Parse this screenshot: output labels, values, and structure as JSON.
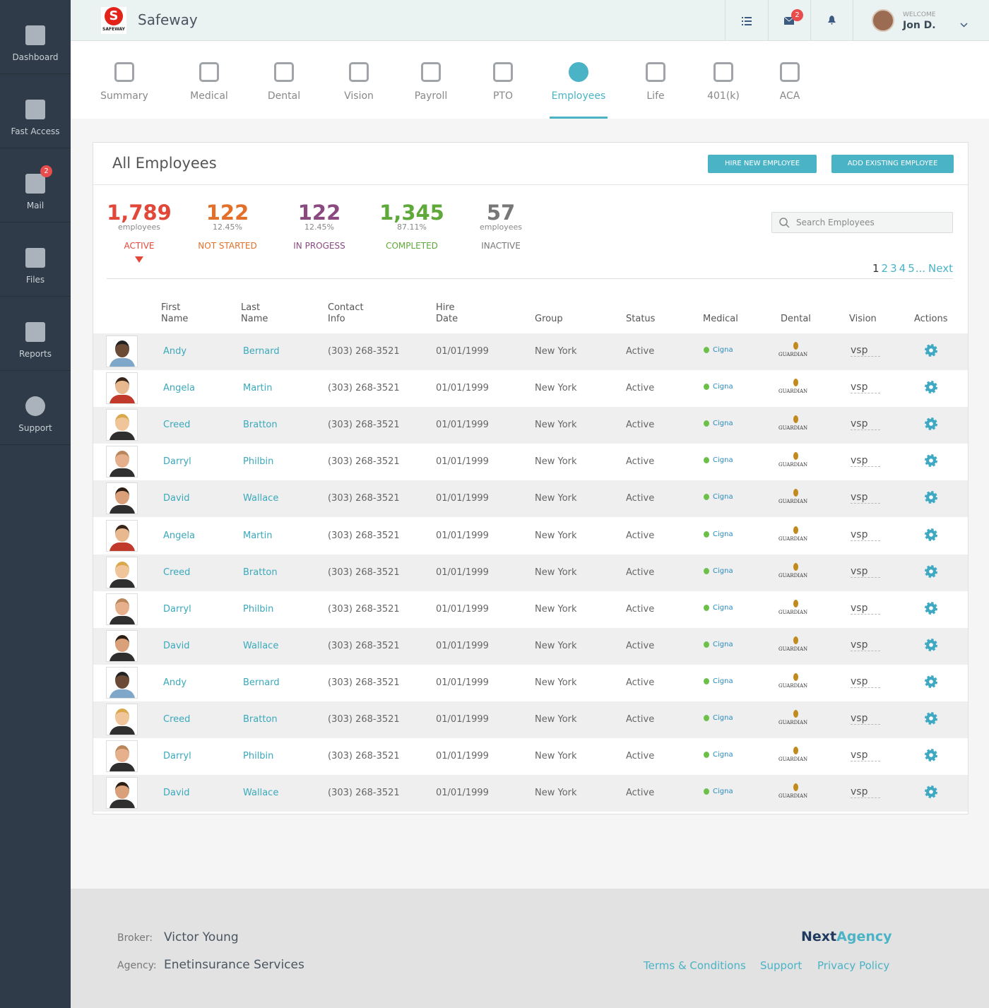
{
  "sidebar": [
    {
      "label": "Dashboard"
    },
    {
      "label": "Fast Access"
    },
    {
      "label": "Mail",
      "badge": 2
    },
    {
      "label": "Files"
    },
    {
      "label": "Reports"
    },
    {
      "label": "Support"
    }
  ],
  "header": {
    "logo_text": "SAFEWAY",
    "brand": "Safeway",
    "mail_badge": 2,
    "welcome": "WELCOME",
    "user": "Jon D."
  },
  "tabs": [
    "Summary",
    "Medical",
    "Dental",
    "Vision",
    "Payroll",
    "PTO",
    "Employees",
    "Life",
    "401(k)",
    "ACA"
  ],
  "active_tab": 6,
  "panel": {
    "title": "All Employees",
    "buttons": [
      "HIRE NEW EMPLOYEE",
      "ADD EXISTING EMPLOYEE"
    ],
    "search_placeholder": "Search Employees"
  },
  "stats": [
    {
      "value": "1,789",
      "sub": "employees",
      "label": "ACTIVE",
      "color": "#e2483a"
    },
    {
      "value": "122",
      "sub": "12.45%",
      "label": "NOT STARTED",
      "color": "#e3702a"
    },
    {
      "value": "122",
      "sub": "12.45%",
      "label": "IN PROGESS",
      "color": "#8a4a80"
    },
    {
      "value": "1,345",
      "sub": "87.11%",
      "label": "COMPLETED",
      "color": "#5fa83a"
    },
    {
      "value": "57",
      "sub": "employees",
      "label": "INACTIVE",
      "color": "#777777"
    }
  ],
  "active_stat": 0,
  "pagination": {
    "pages": [
      1,
      2,
      3,
      4,
      5
    ],
    "ellipsis": "...",
    "next": "Next"
  },
  "table": {
    "columns": [
      "First Name",
      "Last Name",
      "Contact Info",
      "Hire Date",
      "Group",
      "Status",
      "Medical",
      "Dental",
      "Vision",
      "Actions"
    ],
    "providers": {
      "medical": "Cigna",
      "dental": "GUARDIAN",
      "vision": "vsp"
    },
    "rows": [
      [
        "Andy",
        "Bernard",
        "(303) 268-3521",
        "01/01/1999",
        "New York",
        "Active"
      ],
      [
        "Angela",
        "Martin",
        "(303) 268-3521",
        "01/01/1999",
        "New York",
        "Active"
      ],
      [
        "Creed",
        "Bratton",
        "(303) 268-3521",
        "01/01/1999",
        "New York",
        "Active"
      ],
      [
        "Darryl",
        "Philbin",
        "(303) 268-3521",
        "01/01/1999",
        "New York",
        "Active"
      ],
      [
        "David",
        "Wallace",
        "(303) 268-3521",
        "01/01/1999",
        "New York",
        "Active"
      ],
      [
        "Angela",
        "Martin",
        "(303) 268-3521",
        "01/01/1999",
        "New York",
        "Active"
      ],
      [
        "Creed",
        "Bratton",
        "(303) 268-3521",
        "01/01/1999",
        "New York",
        "Active"
      ],
      [
        "Darryl",
        "Philbin",
        "(303) 268-3521",
        "01/01/1999",
        "New York",
        "Active"
      ],
      [
        "David",
        "Wallace",
        "(303) 268-3521",
        "01/01/1999",
        "New York",
        "Active"
      ],
      [
        "Andy",
        "Bernard",
        "(303) 268-3521",
        "01/01/1999",
        "New York",
        "Active"
      ],
      [
        "Creed",
        "Bratton",
        "(303) 268-3521",
        "01/01/1999",
        "New York",
        "Active"
      ],
      [
        "Darryl",
        "Philbin",
        "(303) 268-3521",
        "01/01/1999",
        "New York",
        "Active"
      ],
      [
        "David",
        "Wallace",
        "(303) 268-3521",
        "01/01/1999",
        "New York",
        "Active"
      ]
    ]
  },
  "footer": {
    "broker_label": "Broker:",
    "broker": "Victor Young",
    "agency_label": "Agency:",
    "agency": "Enetinsurance Services",
    "brand_parts": [
      "Next",
      "Agency"
    ],
    "links": [
      "Terms & Conditions",
      "Support",
      "Privacy Policy"
    ]
  }
}
